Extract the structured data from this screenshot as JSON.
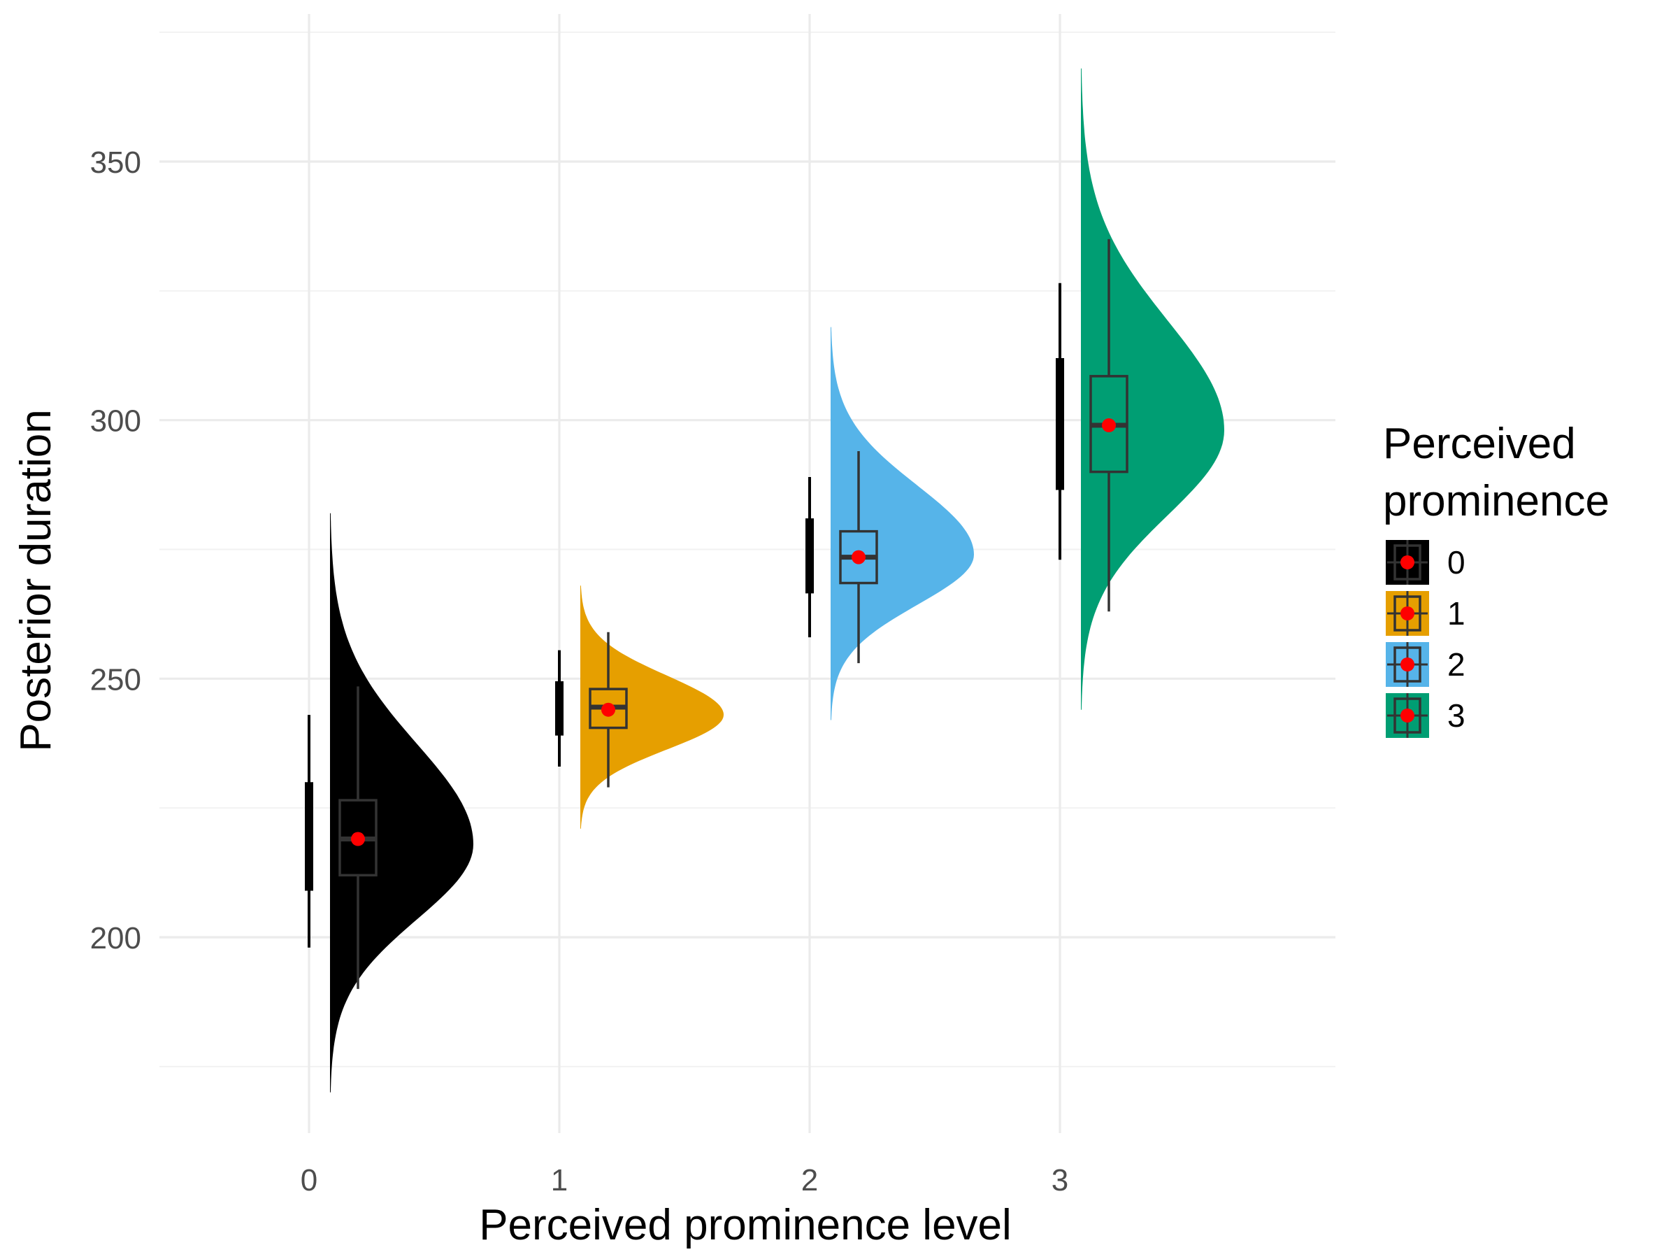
{
  "chart_data": {
    "type": "raincloud",
    "xlabel": "Perceived prominence level",
    "ylabel": "Posterior duration",
    "x_categories": [
      "0",
      "1",
      "2",
      "3"
    ],
    "y_ticks": [
      200,
      250,
      300,
      350
    ],
    "ylim": [
      165,
      378
    ],
    "grid": true,
    "legend": {
      "title_lines": [
        "Perceived",
        "prominence"
      ],
      "position": "right"
    },
    "mean_point_color": "#ff0000",
    "series": [
      {
        "name": "0",
        "color": "#000000",
        "mean": 219,
        "box": {
          "lower_whisker": 190,
          "q1": 212,
          "median": 219,
          "q3": 226.5,
          "upper_whisker": 248.5
        },
        "interval": {
          "inner": [
            209,
            230
          ],
          "outer": [
            198,
            243
          ]
        },
        "density": {
          "min": 170,
          "max": 282,
          "mode": 218
        }
      },
      {
        "name": "1",
        "color": "#e69f00",
        "mean": 244,
        "box": {
          "lower_whisker": 229,
          "q1": 240.5,
          "median": 244.5,
          "q3": 248,
          "upper_whisker": 259
        },
        "interval": {
          "inner": [
            239,
            249.5
          ],
          "outer": [
            233,
            255.5
          ]
        },
        "density": {
          "min": 221,
          "max": 268,
          "mode": 243
        }
      },
      {
        "name": "2",
        "color": "#56b4e9",
        "mean": 273.5,
        "box": {
          "lower_whisker": 253,
          "q1": 268.5,
          "median": 273.5,
          "q3": 278.5,
          "upper_whisker": 294
        },
        "interval": {
          "inner": [
            266.5,
            281
          ],
          "outer": [
            258,
            289
          ]
        },
        "density": {
          "min": 242,
          "max": 318,
          "mode": 274
        }
      },
      {
        "name": "3",
        "color": "#009e73",
        "mean": 299,
        "box": {
          "lower_whisker": 263,
          "q1": 290,
          "median": 299,
          "q3": 308.5,
          "upper_whisker": 335
        },
        "interval": {
          "inner": [
            286.5,
            312
          ],
          "outer": [
            273,
            326.5
          ]
        },
        "density": {
          "min": 244,
          "max": 368,
          "mode": 298
        }
      }
    ]
  }
}
